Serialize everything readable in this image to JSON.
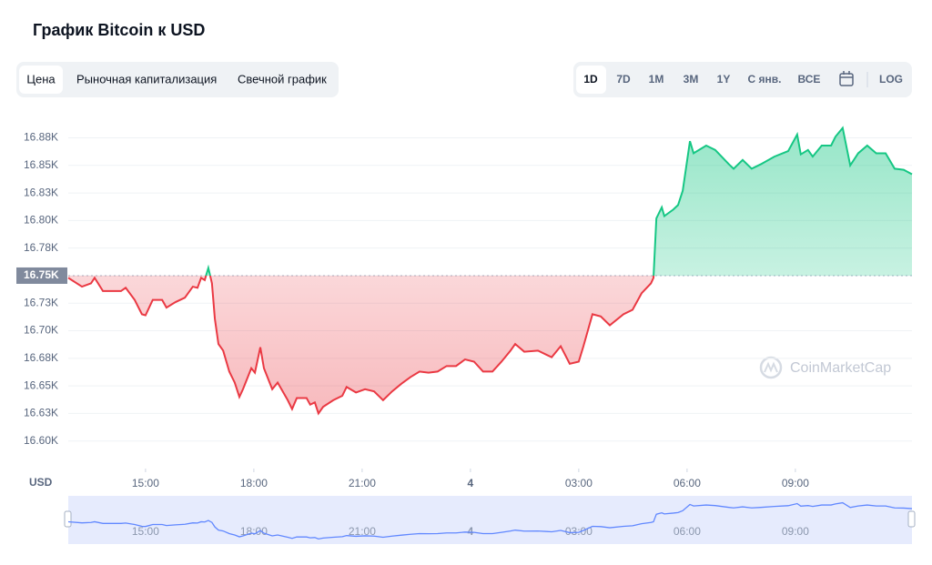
{
  "ui": {
    "tabs": [
      "Цена",
      "Рыночная капитализация",
      "Свечной график"
    ],
    "ranges": [
      "1D",
      "7D",
      "1M",
      "3M",
      "1Y",
      "С янв.",
      "ВСЕ"
    ],
    "log": "LOG"
  },
  "chart_data": {
    "type": "line",
    "title": "График Bitcoin к USD",
    "currency": "USD",
    "watermark": "CoinMarketCap",
    "up_color": "#16c784",
    "down_color": "#ea3943",
    "baseline": 16750,
    "grid": true,
    "xlim": [
      12.86,
      36.23
    ],
    "xticks": [
      {
        "value": 15,
        "label": "15:00"
      },
      {
        "value": 18,
        "label": "18:00"
      },
      {
        "value": 21,
        "label": "21:00"
      },
      {
        "value": 24,
        "label": "4"
      },
      {
        "value": 27,
        "label": "03:00"
      },
      {
        "value": 30,
        "label": "06:00"
      },
      {
        "value": 33,
        "label": "09:00"
      }
    ],
    "ylim": [
      16575,
      16901
    ],
    "yticks": [
      {
        "value": 16600,
        "label": "16.60K"
      },
      {
        "value": 16625,
        "label": "16.63K"
      },
      {
        "value": 16650,
        "label": "16.65K"
      },
      {
        "value": 16675,
        "label": "16.68K"
      },
      {
        "value": 16700,
        "label": "16.70K"
      },
      {
        "value": 16725,
        "label": "16.73K"
      },
      {
        "value": 16750,
        "label": "16.75K"
      },
      {
        "value": 16775,
        "label": "16.78K"
      },
      {
        "value": 16800,
        "label": "16.80K"
      },
      {
        "value": 16825,
        "label": "16.83K"
      },
      {
        "value": 16850,
        "label": "16.85K"
      },
      {
        "value": 16875,
        "label": "16.88K"
      }
    ],
    "x": [
      12.86,
      13.24,
      13.49,
      13.59,
      13.82,
      14.07,
      14.32,
      14.45,
      14.7,
      14.9,
      15.0,
      15.2,
      15.46,
      15.58,
      15.83,
      16.09,
      16.31,
      16.44,
      16.54,
      16.64,
      16.74,
      16.84,
      16.92,
      17.02,
      17.15,
      17.32,
      17.47,
      17.6,
      17.7,
      17.93,
      18.03,
      18.18,
      18.28,
      18.51,
      18.66,
      18.94,
      19.06,
      19.19,
      19.46,
      19.56,
      19.69,
      19.79,
      19.92,
      20.2,
      20.45,
      20.57,
      20.83,
      21.08,
      21.33,
      21.58,
      21.83,
      22.09,
      22.34,
      22.59,
      22.84,
      23.09,
      23.34,
      23.6,
      23.85,
      24.1,
      24.35,
      24.61,
      24.86,
      25.11,
      25.24,
      25.49,
      25.87,
      26.12,
      26.25,
      26.5,
      26.75,
      27.0,
      27.13,
      27.38,
      27.61,
      27.86,
      28.24,
      28.49,
      28.74,
      29.0,
      29.07,
      29.15,
      29.3,
      29.37,
      29.62,
      29.75,
      29.88,
      30.08,
      30.18,
      30.53,
      30.78,
      31.16,
      31.29,
      31.54,
      31.79,
      32.04,
      32.42,
      32.8,
      33.05,
      33.15,
      33.35,
      33.48,
      33.73,
      33.99,
      34.11,
      34.31,
      34.52,
      34.74,
      34.99,
      35.24,
      35.5,
      35.75,
      36.0,
      36.23
    ],
    "values": [
      16748,
      16740,
      16743,
      16748,
      16736,
      16736,
      16736,
      16739,
      16728,
      16715,
      16714,
      16728,
      16728,
      16721,
      16726,
      16730,
      16740,
      16739,
      16748,
      16746,
      16757,
      16743,
      16711,
      16688,
      16682,
      16663,
      16653,
      16640,
      16647,
      16666,
      16662,
      16685,
      16666,
      16647,
      16653,
      16637,
      16629,
      16639,
      16639,
      16633,
      16635,
      16625,
      16631,
      16637,
      16641,
      16649,
      16644,
      16647,
      16645,
      16637,
      16645,
      16652,
      16658,
      16663,
      16662,
      16663,
      16668,
      16668,
      16674,
      16672,
      16663,
      16663,
      16672,
      16682,
      16688,
      16681,
      16682,
      16678,
      16676,
      16686,
      16670,
      16672,
      16686,
      16715,
      16713,
      16705,
      16715,
      16719,
      16734,
      16743,
      16748,
      16802,
      16812,
      16804,
      16810,
      16814,
      16827,
      16872,
      16861,
      16868,
      16864,
      16851,
      16847,
      16855,
      16847,
      16851,
      16858,
      16863,
      16878,
      16860,
      16864,
      16858,
      16868,
      16868,
      16876,
      16884,
      16850,
      16861,
      16868,
      16861,
      16861,
      16847,
      16846,
      16842
    ]
  }
}
